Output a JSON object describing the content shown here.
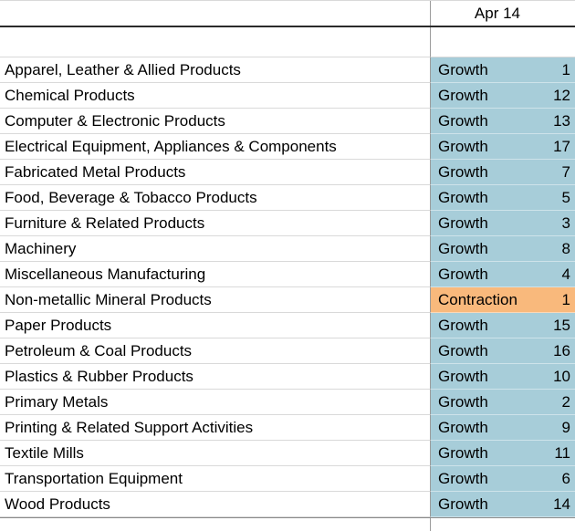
{
  "header": {
    "date_label": "Apr 14"
  },
  "colors": {
    "growth_bg": "#a7cdd9",
    "contraction_bg": "#f9b97c",
    "gridline": "#d9d9d9",
    "column_divider": "#9b9b9b",
    "header_border": "#2a2a2a"
  },
  "status_labels": {
    "growth": "Growth",
    "contraction": "Contraction"
  },
  "rows": [
    {
      "industry": "Apparel, Leather & Allied Products",
      "status": "Growth",
      "value": 1
    },
    {
      "industry": "Chemical Products",
      "status": "Growth",
      "value": 12
    },
    {
      "industry": "Computer & Electronic Products",
      "status": "Growth",
      "value": 13
    },
    {
      "industry": "Electrical Equipment, Appliances & Components",
      "status": "Growth",
      "value": 17
    },
    {
      "industry": "Fabricated Metal Products",
      "status": "Growth",
      "value": 7
    },
    {
      "industry": "Food, Beverage & Tobacco Products",
      "status": "Growth",
      "value": 5
    },
    {
      "industry": "Furniture & Related Products",
      "status": "Growth",
      "value": 3
    },
    {
      "industry": "Machinery",
      "status": "Growth",
      "value": 8
    },
    {
      "industry": "Miscellaneous Manufacturing",
      "status": "Growth",
      "value": 4
    },
    {
      "industry": "Non-metallic Mineral Products",
      "status": "Contraction",
      "value": 1
    },
    {
      "industry": "Paper Products",
      "status": "Growth",
      "value": 15
    },
    {
      "industry": "Petroleum & Coal Products",
      "status": "Growth",
      "value": 16
    },
    {
      "industry": "Plastics & Rubber Products",
      "status": "Growth",
      "value": 10
    },
    {
      "industry": "Primary Metals",
      "status": "Growth",
      "value": 2
    },
    {
      "industry": "Printing & Related Support Activities",
      "status": "Growth",
      "value": 9
    },
    {
      "industry": "Textile Mills",
      "status": "Growth",
      "value": 11
    },
    {
      "industry": "Transportation Equipment",
      "status": "Growth",
      "value": 6
    },
    {
      "industry": "Wood Products",
      "status": "Growth",
      "value": 14
    }
  ]
}
